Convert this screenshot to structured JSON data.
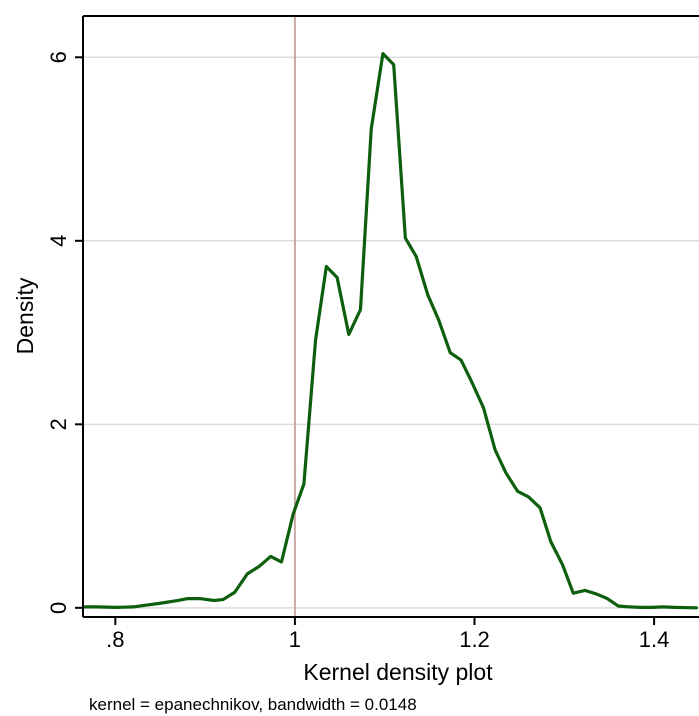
{
  "chart_data": {
    "type": "line",
    "title": "",
    "xlabel": "Kernel density plot",
    "ylabel": "Density",
    "note": "kernel = epanechnikov, bandwidth = 0.0148",
    "xlim": [
      0.764,
      1.45
    ],
    "ylim": [
      -0.1,
      6.45
    ],
    "x_ticks": [
      0.8,
      1.0,
      1.2,
      1.4
    ],
    "x_tick_labels": [
      ".8",
      "1",
      "1.2",
      "1.4"
    ],
    "y_ticks": [
      0,
      2,
      4,
      6
    ],
    "y_tick_labels": [
      "0",
      "2",
      "4",
      "6"
    ],
    "grid": true,
    "reference_line_x": 1.0,
    "series": [
      {
        "color": "#0d5f0d",
        "x": [
          0.766,
          0.78,
          0.8,
          0.82,
          0.835,
          0.85,
          0.87,
          0.88,
          0.895,
          0.91,
          0.92,
          0.933,
          0.947,
          0.96,
          0.973,
          0.985,
          0.998,
          1.01,
          1.023,
          1.035,
          1.047,
          1.06,
          1.073,
          1.085,
          1.098,
          1.11,
          1.123,
          1.135,
          1.148,
          1.16,
          1.173,
          1.185,
          1.197,
          1.21,
          1.223,
          1.235,
          1.248,
          1.26,
          1.273,
          1.285,
          1.298,
          1.31,
          1.323,
          1.336,
          1.348,
          1.36,
          1.373,
          1.385,
          1.398,
          1.41,
          1.423,
          1.447
        ],
        "y": [
          0.01,
          0.01,
          0.005,
          0.01,
          0.03,
          0.05,
          0.08,
          0.1,
          0.1,
          0.08,
          0.09,
          0.17,
          0.37,
          0.45,
          0.56,
          0.5,
          1.02,
          1.35,
          2.92,
          3.72,
          3.6,
          2.98,
          3.25,
          5.22,
          6.04,
          5.92,
          4.03,
          3.83,
          3.41,
          3.14,
          2.78,
          2.7,
          2.46,
          2.18,
          1.72,
          1.47,
          1.27,
          1.21,
          1.09,
          0.72,
          0.47,
          0.16,
          0.19,
          0.15,
          0.1,
          0.02,
          0.01,
          0.005,
          0.005,
          0.01,
          0.005,
          0.0
        ]
      }
    ]
  }
}
